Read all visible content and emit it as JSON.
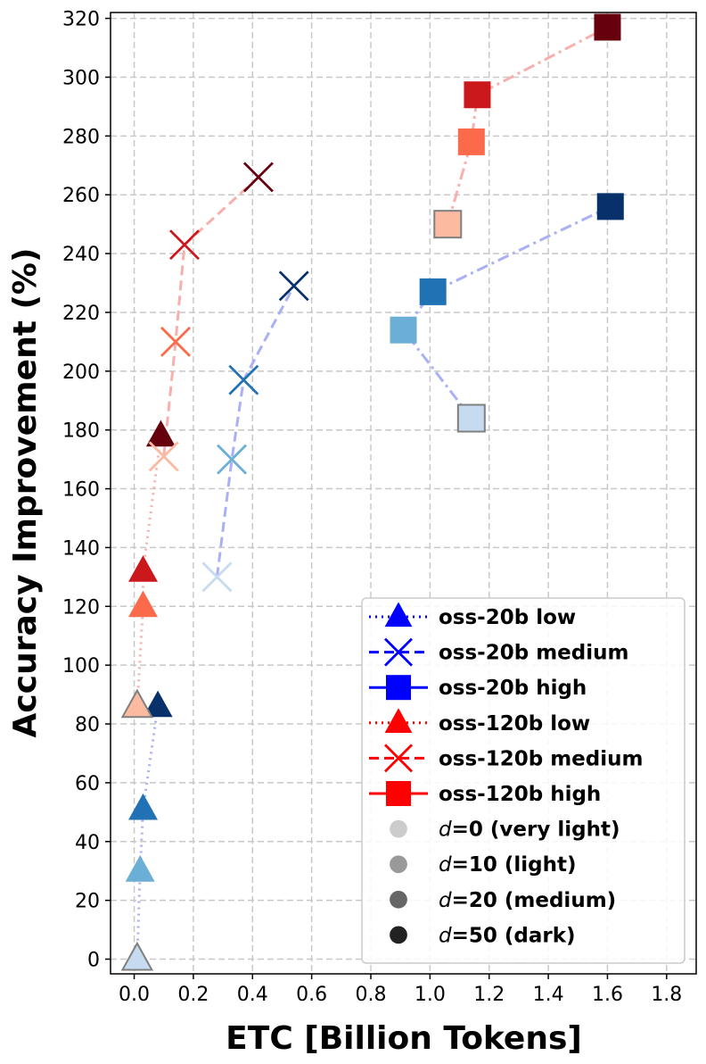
{
  "chart_data": {
    "type": "scatter",
    "xlabel": "ETC [Billion Tokens]",
    "ylabel": "Accuracy Improvement (%)",
    "xlim": [
      -0.08,
      1.9
    ],
    "ylim": [
      -5,
      322
    ],
    "xticks": [
      0.0,
      0.2,
      0.4,
      0.6,
      0.8,
      1.0,
      1.2,
      1.4,
      1.6,
      1.8
    ],
    "xtick_labels": [
      "0.0",
      "0.2",
      "0.4",
      "0.6",
      "0.8",
      "1.0",
      "1.2",
      "1.4",
      "1.6",
      "1.8"
    ],
    "yticks": [
      0,
      20,
      40,
      60,
      80,
      100,
      120,
      140,
      160,
      180,
      200,
      220,
      240,
      260,
      280,
      300,
      320
    ],
    "ytick_labels": [
      "0",
      "20",
      "40",
      "60",
      "80",
      "100",
      "120",
      "140",
      "160",
      "180",
      "200",
      "220",
      "240",
      "260",
      "280",
      "300",
      "320"
    ],
    "grid": true,
    "legend_position": "bottom-right",
    "series": [
      {
        "name": "oss-20b low",
        "marker": "triangle",
        "line_style": "dotted",
        "line_color": "#aab0f5",
        "points": [
          {
            "x": 0.01,
            "y": 0,
            "color": "#c6dbef"
          },
          {
            "x": 0.02,
            "y": 30,
            "color": "#6baed6"
          },
          {
            "x": 0.03,
            "y": 51,
            "color": "#2171b5"
          },
          {
            "x": 0.08,
            "y": 86,
            "color": "#08306b"
          }
        ]
      },
      {
        "name": "oss-20b medium",
        "marker": "x",
        "line_style": "dashed",
        "line_color": "#aab0f5",
        "points": [
          {
            "x": 0.28,
            "y": 130,
            "color": "#c6dbef"
          },
          {
            "x": 0.33,
            "y": 170,
            "color": "#6baed6"
          },
          {
            "x": 0.37,
            "y": 197,
            "color": "#2171b5"
          },
          {
            "x": 0.54,
            "y": 229,
            "color": "#08306b"
          }
        ]
      },
      {
        "name": "oss-20b high",
        "marker": "square",
        "line_style": "dashdot",
        "line_color": "#aab0f5",
        "points": [
          {
            "x": 1.14,
            "y": 184,
            "color": "#c6dbef"
          },
          {
            "x": 0.91,
            "y": 214,
            "color": "#6baed6"
          },
          {
            "x": 1.01,
            "y": 227,
            "color": "#2171b5"
          },
          {
            "x": 1.61,
            "y": 256,
            "color": "#08306b"
          }
        ]
      },
      {
        "name": "oss-120b low",
        "marker": "triangle",
        "line_style": "dotted",
        "line_color": "#f7b0ae",
        "points": [
          {
            "x": 0.01,
            "y": 86,
            "color": "#fcbba1"
          },
          {
            "x": 0.03,
            "y": 120,
            "color": "#fb6a4a"
          },
          {
            "x": 0.03,
            "y": 132,
            "color": "#cb181d"
          },
          {
            "x": 0.09,
            "y": 178,
            "color": "#67000d"
          }
        ]
      },
      {
        "name": "oss-120b medium",
        "marker": "x",
        "line_style": "dashed",
        "line_color": "#f7b0ae",
        "points": [
          {
            "x": 0.1,
            "y": 171,
            "color": "#fcbba1"
          },
          {
            "x": 0.14,
            "y": 210,
            "color": "#fb6a4a"
          },
          {
            "x": 0.17,
            "y": 243,
            "color": "#cb181d"
          },
          {
            "x": 0.42,
            "y": 266,
            "color": "#67000d"
          }
        ]
      },
      {
        "name": "oss-120b high",
        "marker": "square",
        "line_style": "dashdot",
        "line_color": "#f7b0ae",
        "points": [
          {
            "x": 1.06,
            "y": 250,
            "color": "#fcbba1"
          },
          {
            "x": 1.14,
            "y": 278,
            "color": "#fb6a4a"
          },
          {
            "x": 1.16,
            "y": 294,
            "color": "#cb181d"
          },
          {
            "x": 1.6,
            "y": 317,
            "color": "#67000d"
          }
        ]
      }
    ],
    "legend": [
      {
        "label": "oss-20b low",
        "marker": "triangle",
        "line_style": "dotted",
        "color": "#0000ff"
      },
      {
        "label": "oss-20b medium",
        "marker": "x",
        "line_style": "dashed",
        "color": "#0000ff"
      },
      {
        "label": "oss-20b high",
        "marker": "square",
        "line_style": "solid",
        "color": "#0000ff"
      },
      {
        "label": "oss-120b low",
        "marker": "triangle",
        "line_style": "dotted",
        "color": "#ff0000"
      },
      {
        "label": "oss-120b medium",
        "marker": "x",
        "line_style": "dashed",
        "color": "#ff0000"
      },
      {
        "label": "oss-120b high",
        "marker": "square",
        "line_style": "solid",
        "color": "#ff0000"
      },
      {
        "label_prefix": "d",
        "label_suffix": "=0 (very light)",
        "marker": "circle",
        "color": "#cccccc"
      },
      {
        "label_prefix": "d",
        "label_suffix": "=10 (light)",
        "marker": "circle",
        "color": "#999999"
      },
      {
        "label_prefix": "d",
        "label_suffix": "=20 (medium)",
        "marker": "circle",
        "color": "#666666"
      },
      {
        "label_prefix": "d",
        "label_suffix": "=50 (dark)",
        "marker": "circle",
        "color": "#222222"
      }
    ]
  }
}
